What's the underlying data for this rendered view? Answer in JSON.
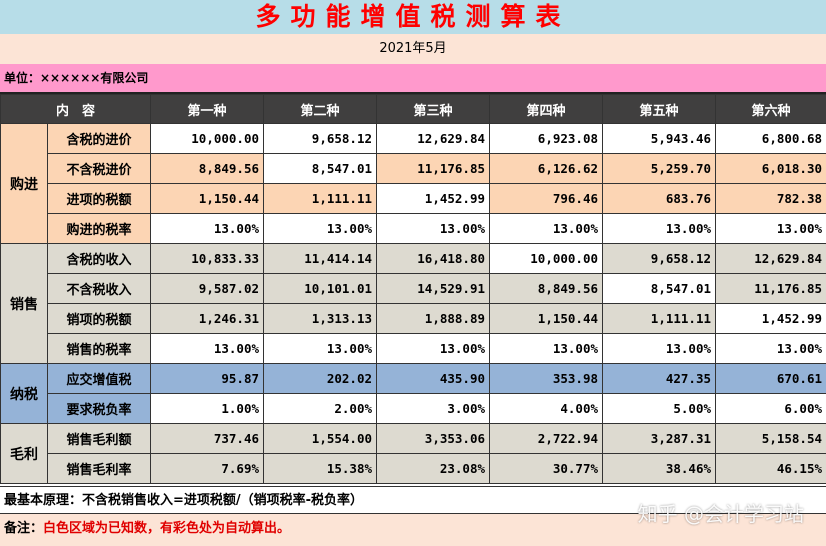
{
  "title": "多功能增值税测算表",
  "date": "2021年5月",
  "unit": "单位：××××××有限公司",
  "header": {
    "content": "内　容",
    "cols": [
      "第一种",
      "第二种",
      "第三种",
      "第四种",
      "第五种",
      "第六种"
    ]
  },
  "groups": {
    "purchase": "购进",
    "sales": "销售",
    "tax": "纳税",
    "profit": "毛利"
  },
  "rows": [
    {
      "label": "含税的进价",
      "values": [
        "10,000.00",
        "9,658.12",
        "12,629.84",
        "6,923.08",
        "5,943.46",
        "6,800.68"
      ]
    },
    {
      "label": "不含税进价",
      "values": [
        "8,849.56",
        "8,547.01",
        "11,176.85",
        "6,126.62",
        "5,259.70",
        "6,018.30"
      ]
    },
    {
      "label": "进项的税额",
      "values": [
        "1,150.44",
        "1,111.11",
        "1,452.99",
        "796.46",
        "683.76",
        "782.38"
      ]
    },
    {
      "label": "购进的税率",
      "values": [
        "13.00%",
        "13.00%",
        "13.00%",
        "13.00%",
        "13.00%",
        "13.00%"
      ]
    },
    {
      "label": "含税的收入",
      "values": [
        "10,833.33",
        "11,414.14",
        "16,418.80",
        "10,000.00",
        "9,658.12",
        "12,629.84"
      ]
    },
    {
      "label": "不含税收入",
      "values": [
        "9,587.02",
        "10,101.01",
        "14,529.91",
        "8,849.56",
        "8,547.01",
        "11,176.85"
      ]
    },
    {
      "label": "销项的税额",
      "values": [
        "1,246.31",
        "1,313.13",
        "1,888.89",
        "1,150.44",
        "1,111.11",
        "1,452.99"
      ]
    },
    {
      "label": "销售的税率",
      "values": [
        "13.00%",
        "13.00%",
        "13.00%",
        "13.00%",
        "13.00%",
        "13.00%"
      ]
    },
    {
      "label": "应交增值税",
      "values": [
        "95.87",
        "202.02",
        "435.90",
        "353.98",
        "427.35",
        "670.61"
      ]
    },
    {
      "label": "要求税负率",
      "values": [
        "1.00%",
        "2.00%",
        "3.00%",
        "4.00%",
        "5.00%",
        "6.00%"
      ]
    },
    {
      "label": "销售毛利额",
      "values": [
        "737.46",
        "1,554.00",
        "3,353.06",
        "2,722.94",
        "3,287.31",
        "5,158.54"
      ]
    },
    {
      "label": "销售毛利率",
      "values": [
        "7.69%",
        "15.38%",
        "23.08%",
        "30.77%",
        "38.46%",
        "46.15%"
      ]
    }
  ],
  "principle": "最基本原理：不含税销售收入=进项税额/（销项税率-税负率）",
  "note_prefix": "备注：",
  "note_text": "白色区域为已知数，有彩色处为自动算出。",
  "watermark": "知乎 @会计学习站",
  "colors": {
    "title_bg": "#b7dde8",
    "title_text": "#ff0000",
    "unit_bg": "#ff99cc",
    "header_bg": "#403f3f",
    "peach": "#fcd5b4",
    "gray": "#dddad0",
    "blue": "#95b3d7"
  }
}
